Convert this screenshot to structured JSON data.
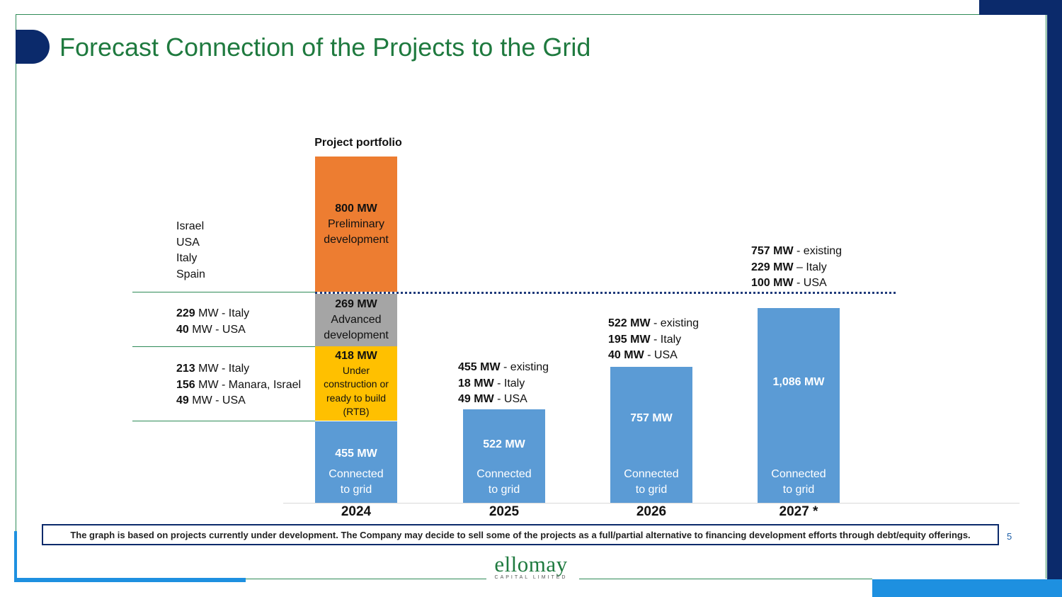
{
  "header": {
    "title": "Forecast Connection of the Projects to the Grid"
  },
  "colors": {
    "navy": "#0b2a6b",
    "green": "#1f7a3f",
    "blue": "#5b9bd5",
    "orange": "#ed7d31",
    "gray": "#a5a5a5",
    "yellow": "#ffc000"
  },
  "chart_data": {
    "type": "bar",
    "title": "Project portfolio",
    "categories": [
      "2024",
      "2025",
      "2026",
      "2027 *"
    ],
    "stacked_2024": [
      {
        "name": "Connected to grid",
        "value_mw": 455,
        "value_label": "455 MW",
        "desc_line1": "Connected",
        "desc_line2": "to grid"
      },
      {
        "name": "Under construction or ready to build (RTB)",
        "value_mw": 418,
        "value_label": "418 MW",
        "desc_lines": [
          "Under",
          "construction or",
          "ready to build",
          "(RTB)"
        ]
      },
      {
        "name": "Advanced development",
        "value_mw": 269,
        "value_label": "269 MW",
        "desc_line1": "Advanced",
        "desc_line2": "development"
      },
      {
        "name": "Preliminary development",
        "value_mw": 800,
        "value_label": "800 MW",
        "desc_line1": "Preliminary",
        "desc_line2": "development"
      }
    ],
    "connected_series": [
      {
        "year": "2024",
        "value_mw": 455,
        "value_label": "455 MW",
        "desc_line1": "Connected",
        "desc_line2": "to grid"
      },
      {
        "year": "2025",
        "value_mw": 522,
        "value_label": "522 MW",
        "desc_line1": "Connected",
        "desc_line2": "to grid"
      },
      {
        "year": "2026",
        "value_mw": 757,
        "value_label": "757 MW",
        "desc_line1": "Connected",
        "desc_line2": "to grid"
      },
      {
        "year": "2027 *",
        "value_mw": 1086,
        "value_label": "1,086 MW",
        "desc_line1": "Connected",
        "desc_line2": "to grid"
      }
    ],
    "left_labels": {
      "preliminary": [
        "Israel",
        "USA",
        "Italy",
        "Spain"
      ],
      "advanced": [
        {
          "mw": "229",
          "rest": " MW - Italy"
        },
        {
          "mw": "40",
          "rest": " MW - USA"
        }
      ],
      "rtb": [
        {
          "mw": "213",
          "rest": " MW - Italy"
        },
        {
          "mw": "156",
          "rest": " MW - Manara, Israel"
        },
        {
          "mw": "49",
          "rest": " MW - USA"
        }
      ]
    },
    "annotations": {
      "2025": [
        {
          "mw": "455 MW",
          "rest": " - existing"
        },
        {
          "mw": "18 MW",
          "rest": " - Italy"
        },
        {
          "mw": "49 MW",
          "rest": " - USA"
        }
      ],
      "2026": [
        {
          "mw": "522 MW",
          "rest": " - existing"
        },
        {
          "mw": "195 MW",
          "rest": " - Italy"
        },
        {
          "mw": "40 MW",
          "rest": " - USA"
        }
      ],
      "2027": [
        {
          "mw": "757 MW",
          "rest": " - existing"
        },
        {
          "mw": "229 MW",
          "rest": " – Italy"
        },
        {
          "mw": "100 MW",
          "rest": " - USA"
        }
      ]
    }
  },
  "footer": {
    "note": "The graph is based on projects currently under development. The Company may decide to sell some of the projects as a full/partial alternative to financing development efforts through debt/equity offerings.",
    "page_number": "5",
    "logo_main": "ellomay",
    "logo_sub": "CAPITAL LIMITED"
  }
}
